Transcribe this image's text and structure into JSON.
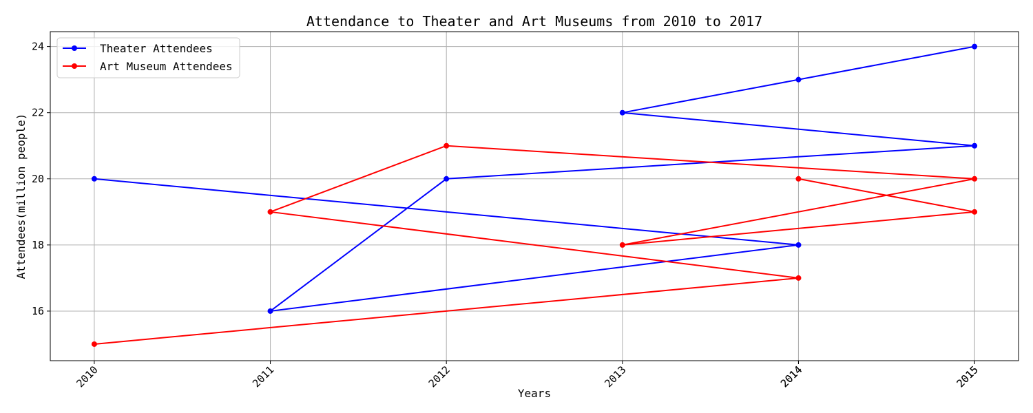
{
  "chart_data": {
    "type": "line",
    "title": "Attendance to Theater and Art Museums from 2010 to 2017",
    "xlabel": "Years",
    "ylabel": "Attendees(million people)",
    "xlim": [
      2009.75,
      2015.25
    ],
    "ylim": [
      14.5,
      24.45
    ],
    "x_ticks": [
      "2010",
      "2011",
      "2012",
      "2013",
      "2014",
      "2015",
      "2014",
      "2015"
    ],
    "y_ticks": [
      16,
      18,
      20,
      22,
      24
    ],
    "grid": true,
    "legend_position": "top-left",
    "series": [
      {
        "name": "Theater Attendees",
        "color": "#0000ff",
        "points": [
          {
            "x": 2010,
            "y": 20
          },
          {
            "x": 2014,
            "y": 18
          },
          {
            "x": 2011,
            "y": 16
          },
          {
            "x": 2012,
            "y": 20
          },
          {
            "x": 2015,
            "y": 21
          },
          {
            "x": 2013,
            "y": 22
          },
          {
            "x": 2014,
            "y": 23
          },
          {
            "x": 2015,
            "y": 24
          }
        ]
      },
      {
        "name": "Art Museum Attendees",
        "color": "#ff0000",
        "points": [
          {
            "x": 2010,
            "y": 15
          },
          {
            "x": 2014,
            "y": 17
          },
          {
            "x": 2011,
            "y": 19
          },
          {
            "x": 2012,
            "y": 21
          },
          {
            "x": 2015,
            "y": 20
          },
          {
            "x": 2013,
            "y": 18
          },
          {
            "x": 2015,
            "y": 19
          },
          {
            "x": 2014,
            "y": 20
          }
        ]
      }
    ]
  }
}
